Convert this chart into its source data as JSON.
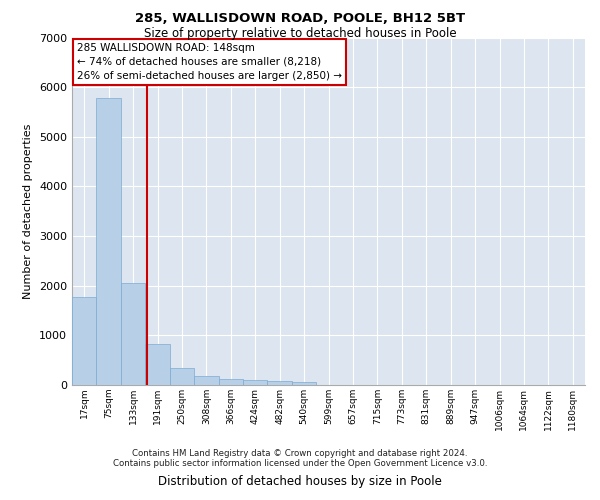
{
  "title_line1": "285, WALLISDOWN ROAD, POOLE, BH12 5BT",
  "title_line2": "Size of property relative to detached houses in Poole",
  "xlabel": "Distribution of detached houses by size in Poole",
  "ylabel": "Number of detached properties",
  "annotation_line1": "285 WALLISDOWN ROAD: 148sqm",
  "annotation_line2": "← 74% of detached houses are smaller (8,218)",
  "annotation_line3": "26% of semi-detached houses are larger (2,850) →",
  "footer_line1": "Contains HM Land Registry data © Crown copyright and database right 2024.",
  "footer_line2": "Contains public sector information licensed under the Open Government Licence v3.0.",
  "bin_labels": [
    "17sqm",
    "75sqm",
    "133sqm",
    "191sqm",
    "250sqm",
    "308sqm",
    "366sqm",
    "424sqm",
    "482sqm",
    "540sqm",
    "599sqm",
    "657sqm",
    "715sqm",
    "773sqm",
    "831sqm",
    "889sqm",
    "947sqm",
    "1006sqm",
    "1064sqm",
    "1122sqm",
    "1180sqm"
  ],
  "bar_values": [
    1780,
    5780,
    2060,
    820,
    340,
    185,
    115,
    105,
    80,
    65,
    0,
    0,
    0,
    0,
    0,
    0,
    0,
    0,
    0,
    0,
    0
  ],
  "bar_color": "#b8cfe8",
  "bar_edge_color": "#7aaad4",
  "property_line_x": 2.55,
  "property_line_color": "#cc0000",
  "ylim": [
    0,
    7000
  ],
  "yticks": [
    0,
    1000,
    2000,
    3000,
    4000,
    5000,
    6000,
    7000
  ],
  "background_color": "#dde6f0",
  "grid_color": "#ffffff",
  "annotation_box_color": "#ffffff",
  "annotation_box_edge_color": "#cc0000"
}
